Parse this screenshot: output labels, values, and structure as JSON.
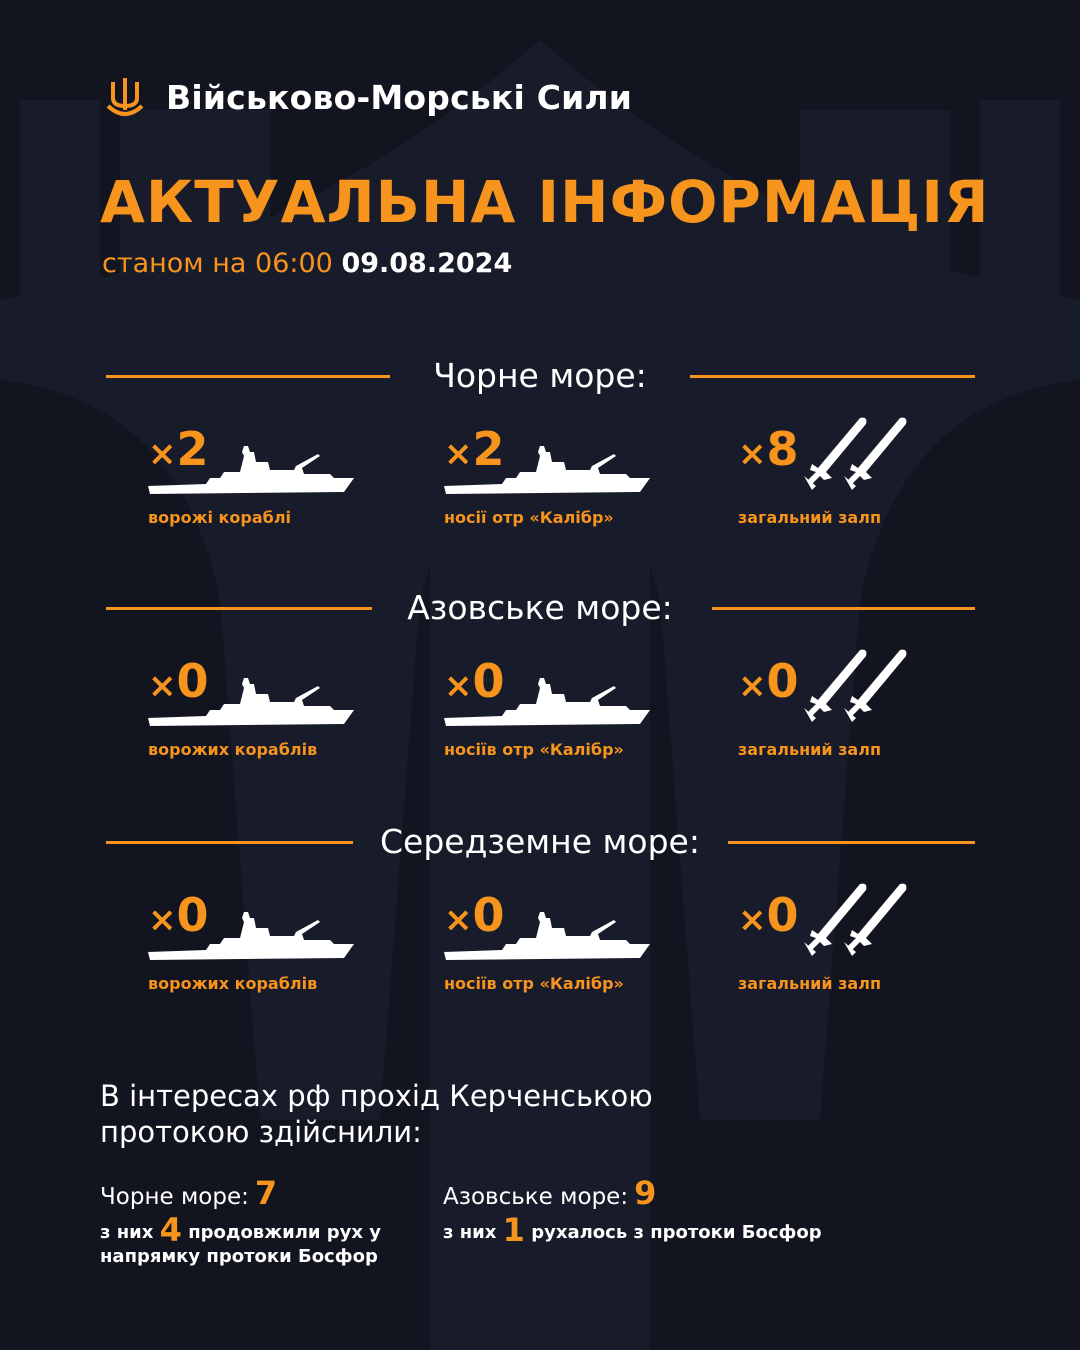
{
  "header": {
    "brand": "Військово-Морські Сили",
    "title": "АКТУАЛЬНА ІНФОРМАЦІЯ",
    "subtitle_prefix": "станом на 06:00",
    "date": "09.08.2024"
  },
  "colors": {
    "accent": "#f7941d",
    "background": "#12141f",
    "text": "#ffffff"
  },
  "sections": [
    {
      "title": "Чорне море:",
      "items": [
        {
          "count": "2",
          "label": "ворожі кораблі",
          "icon": "warship-icon"
        },
        {
          "count": "2",
          "label": "носії отр «Калібр»",
          "icon": "warship-icon"
        },
        {
          "count": "8",
          "label": "загальний залп",
          "icon": "missiles-icon"
        }
      ]
    },
    {
      "title": "Азовське море:",
      "items": [
        {
          "count": "0",
          "label": "ворожих кораблів",
          "icon": "warship-icon"
        },
        {
          "count": "0",
          "label": "носіїв отр «Калібр»",
          "icon": "warship-icon"
        },
        {
          "count": "0",
          "label": "загальний залп",
          "icon": "missiles-icon"
        }
      ]
    },
    {
      "title": "Середземне море:",
      "items": [
        {
          "count": "0",
          "label": "ворожих кораблів",
          "icon": "warship-icon"
        },
        {
          "count": "0",
          "label": "носіїв отр «Калібр»",
          "icon": "warship-icon"
        },
        {
          "count": "0",
          "label": "загальний залп",
          "icon": "missiles-icon"
        }
      ]
    }
  ],
  "kerch": {
    "text": "В інтересах рф прохід Керченською протокою здійснили:",
    "black_sea": {
      "label": "Чорне море:",
      "value": "7",
      "detail_prefix": "з них",
      "detail_value": "4",
      "detail_suffix": "продовжили рух у напрямку протоки Босфор"
    },
    "azov_sea": {
      "label": "Азовське море:",
      "value": "9",
      "detail_prefix": "з них",
      "detail_value": "1",
      "detail_suffix": "рухалось з протоки Босфор"
    }
  },
  "multiplier": "×"
}
